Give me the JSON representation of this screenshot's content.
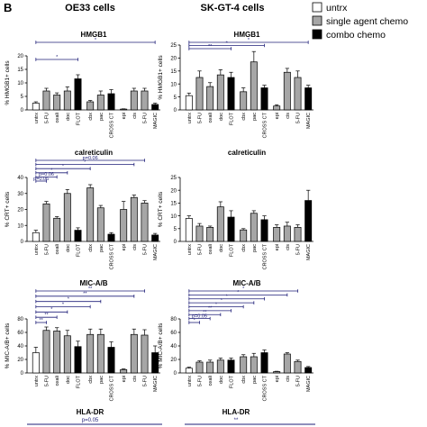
{
  "figure": {
    "panel_letter": "B",
    "column_titles": [
      "OE33 cells",
      "SK-GT-4 cells"
    ],
    "legend": [
      {
        "label": "untrx",
        "fill": "#ffffff"
      },
      {
        "label": "single agent chemo",
        "fill": "#a6a6a6"
      },
      {
        "label": "combo chemo",
        "fill": "#000000"
      }
    ],
    "colors": {
      "untrx": "#ffffff",
      "single": "#a6a6a6",
      "combo": "#000000",
      "sig": "#1f1f78"
    }
  },
  "chart_data": [
    {
      "type": "bar",
      "title": "HMGB1",
      "ylabel": "% HMGB1+ cells",
      "ylim": [
        0,
        20
      ],
      "yticks": [
        0,
        5,
        10,
        15,
        20
      ],
      "categories": [
        "untrx",
        "5-FU",
        "oxali",
        "doc",
        "FLOT",
        "cbx",
        "pac",
        "CROSS CT",
        "epi",
        "cis",
        "5-FU",
        "MAGIC"
      ],
      "groups": [
        "untrx",
        "single",
        "single",
        "single",
        "combo",
        "single",
        "single",
        "combo",
        "single",
        "single",
        "single",
        "combo"
      ],
      "values": [
        2.5,
        7,
        5.5,
        7,
        11.5,
        3,
        5.5,
        6,
        0.3,
        7,
        7,
        2
      ],
      "errors": [
        0.5,
        1,
        0.8,
        1.5,
        1.5,
        0.5,
        1.5,
        1.5,
        0.1,
        1,
        1,
        0.5
      ],
      "significance": [
        {
          "from": 0,
          "to": 4,
          "label": "*"
        },
        {
          "from": 0,
          "to": 11,
          "label": "*"
        }
      ]
    },
    {
      "type": "bar",
      "title": "HMGB1",
      "ylabel": "% HMGB1+ cells",
      "ylim": [
        0,
        25
      ],
      "yticks": [
        0,
        5,
        10,
        15,
        20,
        25
      ],
      "categories": [
        "untrx",
        "5-FU",
        "oxali",
        "doc",
        "FLOT",
        "cbx",
        "pac",
        "CROSS CT",
        "epi",
        "cis",
        "5-FU",
        "MAGIC"
      ],
      "groups": [
        "untrx",
        "single",
        "single",
        "single",
        "combo",
        "single",
        "single",
        "combo",
        "single",
        "single",
        "single",
        "combo"
      ],
      "values": [
        5.5,
        12.5,
        9,
        13.5,
        12.5,
        7,
        18.5,
        8.5,
        1.5,
        14.5,
        12.5,
        8.5
      ],
      "errors": [
        1,
        2.5,
        1.5,
        2,
        2,
        1.5,
        4,
        1,
        0.5,
        1.5,
        2.5,
        1
      ],
      "significance": [
        {
          "from": 0,
          "to": 4,
          "label": "**"
        },
        {
          "from": 0,
          "to": 7,
          "label": "*"
        },
        {
          "from": 0,
          "to": 11,
          "label": "*"
        }
      ]
    },
    {
      "type": "bar",
      "title": "calreticulin",
      "ylabel": "% CRT+ cells",
      "ylim": [
        0,
        40
      ],
      "yticks": [
        0,
        10,
        20,
        30,
        40
      ],
      "categories": [
        "untrx",
        "5-FU",
        "oxali",
        "doc",
        "FLOT",
        "cbx",
        "pac",
        "CROSS CT",
        "epi",
        "cis",
        "5-FU",
        "MAGIC"
      ],
      "groups": [
        "untrx",
        "single",
        "single",
        "single",
        "combo",
        "single",
        "single",
        "combo",
        "single",
        "single",
        "single",
        "combo"
      ],
      "values": [
        5.5,
        23.5,
        14.5,
        30,
        7,
        33.5,
        21,
        4.5,
        20,
        27.5,
        24,
        4
      ],
      "errors": [
        1.5,
        1.5,
        1,
        2.5,
        1.5,
        2,
        1.5,
        1,
        5,
        1.5,
        1.5,
        1
      ],
      "significance": [
        {
          "from": 0,
          "to": 1,
          "label": "p=0.06"
        },
        {
          "from": 0,
          "to": 2,
          "label": "p=0.06"
        },
        {
          "from": 0,
          "to": 3,
          "label": "*"
        },
        {
          "from": 0,
          "to": 5,
          "label": "*"
        },
        {
          "from": 0,
          "to": 9,
          "label": "*"
        },
        {
          "from": 0,
          "to": 10,
          "label": "p=0.06"
        }
      ]
    },
    {
      "type": "bar",
      "title": "calreticulin",
      "ylabel": "% CRT+ cells",
      "ylim": [
        0,
        25
      ],
      "yticks": [
        0,
        5,
        10,
        15,
        20,
        25
      ],
      "categories": [
        "untrx",
        "5-FU",
        "oxali",
        "doc",
        "FLOT",
        "cbx",
        "pac",
        "CROSS CT",
        "epi",
        "cis",
        "5-FU",
        "MAGIC"
      ],
      "groups": [
        "untrx",
        "single",
        "single",
        "single",
        "combo",
        "single",
        "single",
        "combo",
        "single",
        "single",
        "single",
        "combo"
      ],
      "values": [
        9,
        6,
        5.5,
        13.5,
        9.5,
        4.5,
        11,
        8.5,
        5.5,
        6,
        5.5,
        16
      ],
      "errors": [
        1,
        1,
        0.5,
        2,
        2.5,
        0.5,
        1,
        1.5,
        1,
        1.5,
        1,
        4
      ],
      "significance": []
    },
    {
      "type": "bar",
      "title": "MIC-A/B",
      "ylabel": "% MIC-A/B+ cells",
      "ylim": [
        0,
        80
      ],
      "yticks": [
        0,
        20,
        40,
        60,
        80
      ],
      "categories": [
        "untrx",
        "5-FU",
        "oxali",
        "doc",
        "FLOT",
        "cbx",
        "pac",
        "CROSS CT",
        "epi",
        "cis",
        "5-FU",
        "MAGIC"
      ],
      "groups": [
        "untrx",
        "single",
        "single",
        "single",
        "combo",
        "single",
        "single",
        "combo",
        "single",
        "single",
        "single",
        "combo"
      ],
      "values": [
        30,
        63,
        62,
        55,
        39,
        57,
        57,
        38,
        5,
        57,
        56,
        30
      ],
      "errors": [
        8,
        5,
        5,
        8,
        8,
        8,
        8,
        8,
        1,
        8,
        8,
        10
      ],
      "significance": [
        {
          "from": 0,
          "to": 1,
          "label": "**"
        },
        {
          "from": 0,
          "to": 2,
          "label": "**"
        },
        {
          "from": 0,
          "to": 3,
          "label": "*"
        },
        {
          "from": 0,
          "to": 5,
          "label": "*"
        },
        {
          "from": 0,
          "to": 6,
          "label": "*"
        },
        {
          "from": 0,
          "to": 9,
          "label": "**"
        },
        {
          "from": 0,
          "to": 10,
          "label": "**"
        }
      ]
    },
    {
      "type": "bar",
      "title": "MIC-A/B",
      "ylabel": "% MIC-A/B+ cells",
      "ylim": [
        0,
        80
      ],
      "yticks": [
        0,
        20,
        40,
        60,
        80
      ],
      "categories": [
        "untrx",
        "5-FU",
        "oxali",
        "doc",
        "FLOT",
        "cbx",
        "pac",
        "CROSS CT",
        "epi",
        "cis",
        "5-FU",
        "MAGIC"
      ],
      "groups": [
        "untrx",
        "single",
        "single",
        "single",
        "combo",
        "single",
        "single",
        "combo",
        "single",
        "single",
        "single",
        "combo"
      ],
      "values": [
        7,
        16,
        16,
        19,
        19,
        24,
        24,
        30,
        2,
        28,
        17,
        8
      ],
      "errors": [
        1.5,
        2,
        3,
        3,
        3,
        3,
        5,
        4,
        0.5,
        2,
        2,
        1.5
      ],
      "significance": [
        {
          "from": 0,
          "to": 1,
          "label": "*"
        },
        {
          "from": 0,
          "to": 2,
          "label": "p=0.05"
        },
        {
          "from": 0,
          "to": 3,
          "label": "**"
        },
        {
          "from": 0,
          "to": 4,
          "label": "**"
        },
        {
          "from": 0,
          "to": 5,
          "label": "*"
        },
        {
          "from": 0,
          "to": 6,
          "label": "*"
        },
        {
          "from": 0,
          "to": 7,
          "label": "*"
        },
        {
          "from": 0,
          "to": 9,
          "label": "*"
        },
        {
          "from": 0,
          "to": 10,
          "label": "*"
        }
      ]
    }
  ],
  "bottom_panels": [
    {
      "title": "HLA-DR",
      "significance_label": "p=0.05"
    },
    {
      "title": "HLA-DR",
      "significance_label": "**"
    }
  ]
}
